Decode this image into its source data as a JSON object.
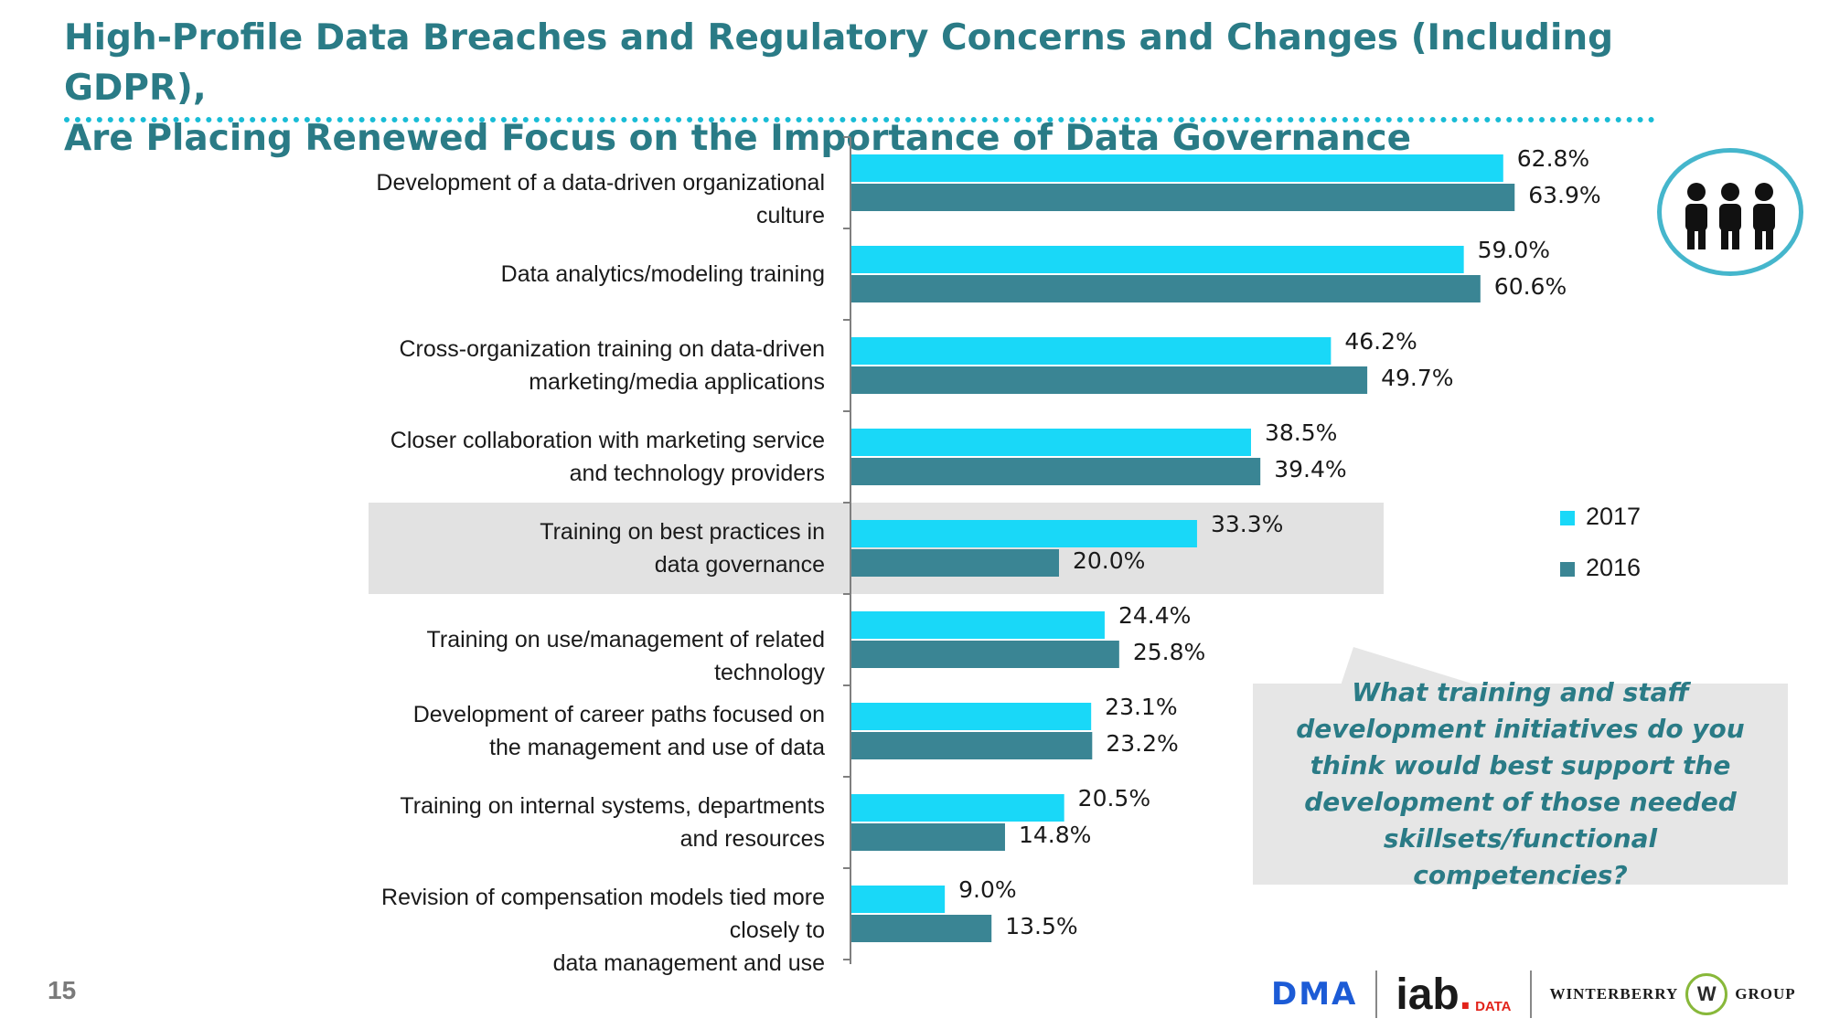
{
  "header": {
    "title_line1": "High-Profile Data Breaches and Regulatory Concerns and Changes (Including GDPR),",
    "title_line2": "Are Placing Renewed Focus on the Importance of Data Governance"
  },
  "chart_data": {
    "type": "bar",
    "orientation": "horizontal",
    "title": "",
    "xlabel": "",
    "ylabel": "",
    "xlim": [
      0,
      100
    ],
    "grid": false,
    "legend_position": "right",
    "highlighted_category_index": 4,
    "categories": [
      [
        "Development of a data-driven organizational culture"
      ],
      [
        "Data analytics/modeling training"
      ],
      [
        "Cross-organization training on data-driven",
        "marketing/media applications"
      ],
      [
        "Closer collaboration with marketing service",
        "and technology providers"
      ],
      [
        "Training on best practices in",
        "data governance"
      ],
      [
        "Training on use/management of related technology"
      ],
      [
        "Development of career paths focused on",
        "the management and use of data"
      ],
      [
        "Training on internal systems, departments",
        "and resources"
      ],
      [
        "Revision of compensation models tied more closely to",
        "data management and use"
      ]
    ],
    "series": [
      {
        "name": "2017",
        "color": "#19d8f8",
        "values": [
          62.8,
          59.0,
          46.2,
          38.5,
          33.3,
          24.4,
          23.1,
          20.5,
          9.0
        ],
        "labels": [
          "62.8%",
          "59.0%",
          "46.2%",
          "38.5%",
          "33.3%",
          "24.4%",
          "23.1%",
          "20.5%",
          "9.0%"
        ]
      },
      {
        "name": "2016",
        "color": "#3a8594",
        "values": [
          63.9,
          60.6,
          49.7,
          39.4,
          20.0,
          25.8,
          23.2,
          14.8,
          13.5
        ],
        "labels": [
          "63.9%",
          "60.6%",
          "49.7%",
          "39.4%",
          "20.0%",
          "25.8%",
          "23.2%",
          "14.8%",
          "13.5%"
        ]
      }
    ]
  },
  "legend": {
    "items": [
      {
        "label": "2017",
        "color": "#19d8f8"
      },
      {
        "label": "2016",
        "color": "#3a8594"
      }
    ]
  },
  "badge": {
    "icon": "people-icon"
  },
  "callout": {
    "text": "What training and staff development initiatives do you think would best support the development of those needed skillsets/functional competencies?"
  },
  "footer": {
    "page_number": "15",
    "logo_dma": "DMA",
    "logo_iab": "iab",
    "logo_iab_sub": "DATA",
    "logo_winterberry": "WINTERBERRY",
    "logo_w": "W",
    "logo_group": "GROUP"
  },
  "colors": {
    "title": "#2a7b86",
    "accent_dots": "#19bcd6",
    "highlight_band": "#e2e2e2",
    "callout_bg": "#e6e6e6"
  }
}
